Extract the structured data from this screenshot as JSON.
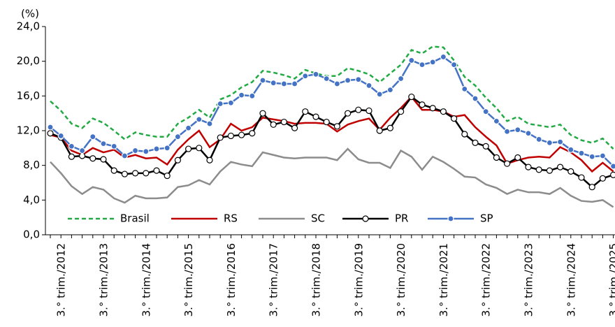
{
  "chart_data": {
    "type": "line",
    "y_label": "(%)",
    "categories": [
      null,
      "3.° trim./2012",
      null,
      null,
      null,
      "3.° trim./2013",
      null,
      null,
      null,
      "3.° trim./2014",
      null,
      null,
      null,
      "3.° trim./2015",
      null,
      null,
      null,
      "3.° trim./2016",
      null,
      null,
      null,
      "3.° trim./2017",
      null,
      null,
      null,
      "3.° trim./2018",
      null,
      null,
      null,
      "3.° trim./2019",
      null,
      null,
      null,
      "3.° trim./2020",
      null,
      null,
      null,
      "3.° trim./2021",
      null,
      null,
      null,
      "3.° trim./2022",
      null,
      null,
      null,
      "3.° trim./2023",
      null,
      null,
      null,
      "3.° trim./2024",
      null,
      null,
      null,
      "3.° trim./2025"
    ],
    "series": [
      {
        "name": "Brasil",
        "color": "#22aa44",
        "style": "dashed",
        "marker": "none",
        "values": [
          15.4,
          14.3,
          12.8,
          12.3,
          13.4,
          12.9,
          12.0,
          11.0,
          11.8,
          11.5,
          11.3,
          11.3,
          12.8,
          13.5,
          14.4,
          13.5,
          15.6,
          16.1,
          17.0,
          17.6,
          18.9,
          18.7,
          18.4,
          18.0,
          19.0,
          18.6,
          18.3,
          18.3,
          19.2,
          18.9,
          18.5,
          17.6,
          18.6,
          19.6,
          21.3,
          20.9,
          21.7,
          21.6,
          20.1,
          18.2,
          17.2,
          15.8,
          14.6,
          13.1,
          13.6,
          12.8,
          12.6,
          12.4,
          12.7,
          11.5,
          10.9,
          10.6,
          11.1,
          9.9
        ]
      },
      {
        "name": "RS",
        "color": "#c00000",
        "style": "solid",
        "marker": "none",
        "values": [
          11.5,
          11.2,
          9.7,
          9.2,
          10.0,
          9.5,
          9.8,
          8.9,
          9.2,
          8.8,
          8.9,
          8.1,
          9.8,
          11.0,
          12.0,
          10.1,
          11.0,
          12.8,
          12.0,
          12.4,
          13.5,
          13.3,
          13.1,
          12.8,
          12.9,
          12.9,
          12.8,
          11.9,
          12.7,
          13.1,
          13.4,
          12.1,
          13.5,
          14.6,
          15.9,
          14.4,
          14.4,
          14.2,
          13.6,
          13.8,
          12.4,
          11.3,
          10.3,
          8.2,
          8.6,
          8.9,
          9.0,
          8.9,
          10.1,
          9.5,
          8.6,
          7.3,
          8.3,
          7.3
        ]
      },
      {
        "name": "SC",
        "color": "#8c8c8c",
        "style": "solid",
        "marker": "none",
        "values": [
          8.4,
          7.1,
          5.6,
          4.7,
          5.5,
          5.2,
          4.2,
          3.7,
          4.5,
          4.2,
          4.2,
          4.3,
          5.5,
          5.7,
          6.3,
          5.8,
          7.3,
          8.4,
          8.1,
          7.9,
          9.5,
          9.2,
          8.9,
          8.8,
          8.9,
          8.9,
          8.9,
          8.6,
          9.9,
          8.7,
          8.3,
          8.3,
          7.7,
          9.7,
          9.0,
          7.5,
          9.0,
          8.4,
          7.6,
          6.7,
          6.6,
          5.8,
          5.4,
          4.7,
          5.2,
          4.9,
          4.9,
          4.7,
          5.4,
          4.5,
          3.9,
          3.8,
          4.0,
          3.2
        ]
      },
      {
        "name": "PR",
        "color": "#000000",
        "style": "solid",
        "marker": "open-circle",
        "values": [
          11.7,
          11.2,
          9.0,
          9.1,
          8.8,
          8.7,
          7.4,
          7.0,
          7.1,
          7.1,
          7.4,
          6.8,
          8.6,
          9.9,
          10.0,
          8.6,
          11.2,
          11.4,
          11.5,
          11.7,
          14.0,
          12.7,
          13.0,
          12.3,
          14.2,
          13.6,
          13.0,
          12.5,
          14.0,
          14.4,
          14.3,
          12.0,
          12.3,
          14.2,
          15.9,
          15.0,
          14.6,
          14.2,
          13.4,
          11.6,
          10.6,
          10.2,
          8.9,
          8.2,
          8.9,
          7.8,
          7.5,
          7.4,
          7.8,
          7.3,
          6.6,
          5.5,
          6.5,
          6.9
        ]
      },
      {
        "name": "SP",
        "color": "#4472c4",
        "style": "solid",
        "marker": "filled-circle",
        "values": [
          12.4,
          11.4,
          10.2,
          9.7,
          11.3,
          10.5,
          10.2,
          9.1,
          9.7,
          9.6,
          9.9,
          10.0,
          11.3,
          12.3,
          13.3,
          12.8,
          15.1,
          15.2,
          16.1,
          16.0,
          17.8,
          17.5,
          17.4,
          17.4,
          18.3,
          18.5,
          18.0,
          17.4,
          17.8,
          17.9,
          17.2,
          16.2,
          16.7,
          18.0,
          20.1,
          19.6,
          19.9,
          20.5,
          19.6,
          16.8,
          15.7,
          14.2,
          13.1,
          11.9,
          12.1,
          11.7,
          11.0,
          10.6,
          10.7,
          9.8,
          9.4,
          9.0,
          9.1,
          7.9
        ]
      }
    ],
    "ylim": [
      0,
      24
    ],
    "yticks": [
      {
        "value": 0,
        "label": "0,0"
      },
      {
        "value": 4,
        "label": "4,0"
      },
      {
        "value": 8,
        "label": "8,0"
      },
      {
        "value": 12,
        "label": "12,0"
      },
      {
        "value": 16,
        "label": "16,0"
      },
      {
        "value": 20,
        "label": "20,0"
      },
      {
        "value": 24,
        "label": "24,0"
      }
    ],
    "grid": false,
    "legend": "bottom-left"
  }
}
